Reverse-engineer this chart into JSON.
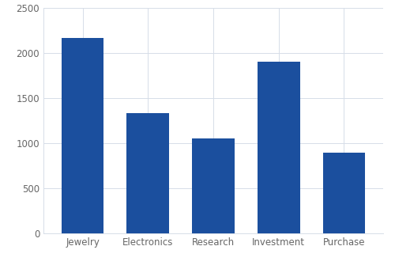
{
  "categories": [
    "Jewelry",
    "Electronics",
    "Research",
    "Investment",
    "Purchase"
  ],
  "values": [
    2170,
    1330,
    1050,
    1900,
    890
  ],
  "bar_color": "#1b4f9e",
  "ylim": [
    0,
    2500
  ],
  "yticks": [
    0,
    500,
    1000,
    1500,
    2000,
    2500
  ],
  "background_color": "#ffffff",
  "grid_color": "#d6dde8",
  "tick_label_color": "#666666",
  "tick_label_fontsize": 8.5,
  "bar_width": 0.65,
  "figsize": [
    5.0,
    3.35
  ],
  "dpi": 100
}
